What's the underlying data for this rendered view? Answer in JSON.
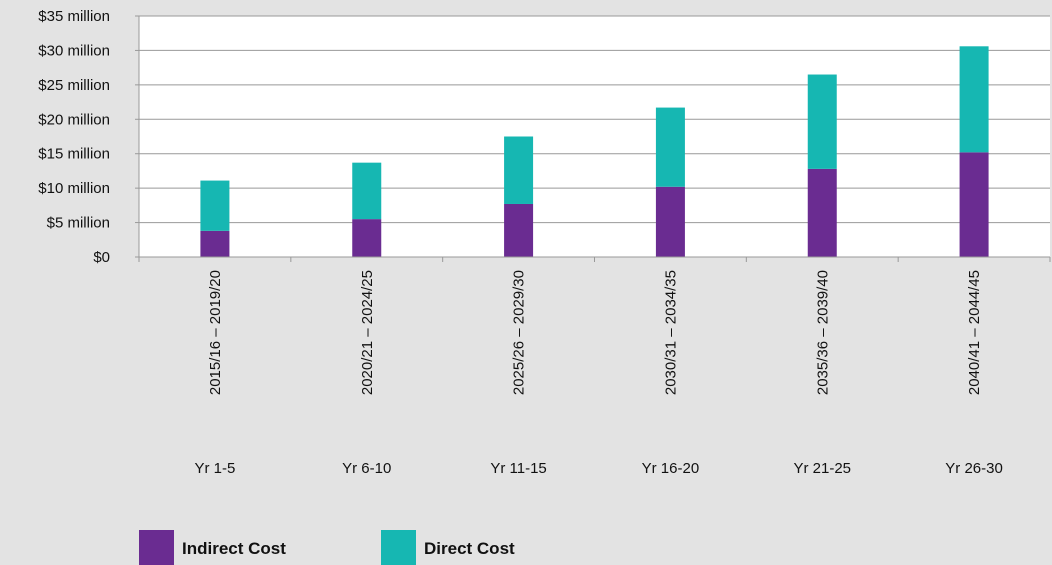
{
  "colors": {
    "background": "#e3e3e3",
    "plot_background": "#ffffff",
    "indirect": "#6a2c91",
    "direct": "#16b7b2",
    "axis": "#999999",
    "gridline": "#999999"
  },
  "chart_data": {
    "type": "bar",
    "stacked": true,
    "categories": [
      "2015/16 – 2019/20",
      "2020/21 – 2024/25",
      "2025/26 – 2029/30",
      "2030/31 – 2034/35",
      "2035/36 – 2039/40",
      "2040/41 – 2044/45"
    ],
    "category_sublabels": [
      "Yr 1-5",
      "Yr 6-10",
      "Yr 11-15",
      "Yr 16-20",
      "Yr 21-25",
      "Yr 26-30"
    ],
    "series": [
      {
        "name": "Indirect Cost",
        "color": "#6a2c91",
        "values": [
          3.8,
          5.5,
          7.7,
          10.2,
          12.8,
          15.2
        ]
      },
      {
        "name": "Direct Cost",
        "color": "#16b7b2",
        "values": [
          7.3,
          8.2,
          9.8,
          11.5,
          13.7,
          15.4
        ]
      }
    ],
    "ylim": [
      0,
      35
    ],
    "y_ticks": [
      0,
      5,
      10,
      15,
      20,
      25,
      30,
      35
    ],
    "y_tick_labels": [
      "$0",
      "$5 million",
      "$10 million",
      "$15 million",
      "$20 million",
      "$25 million",
      "$30 million",
      "$35 million"
    ],
    "grid": true,
    "legend_position": "bottom-left",
    "title": "",
    "xlabel": "",
    "ylabel": ""
  }
}
